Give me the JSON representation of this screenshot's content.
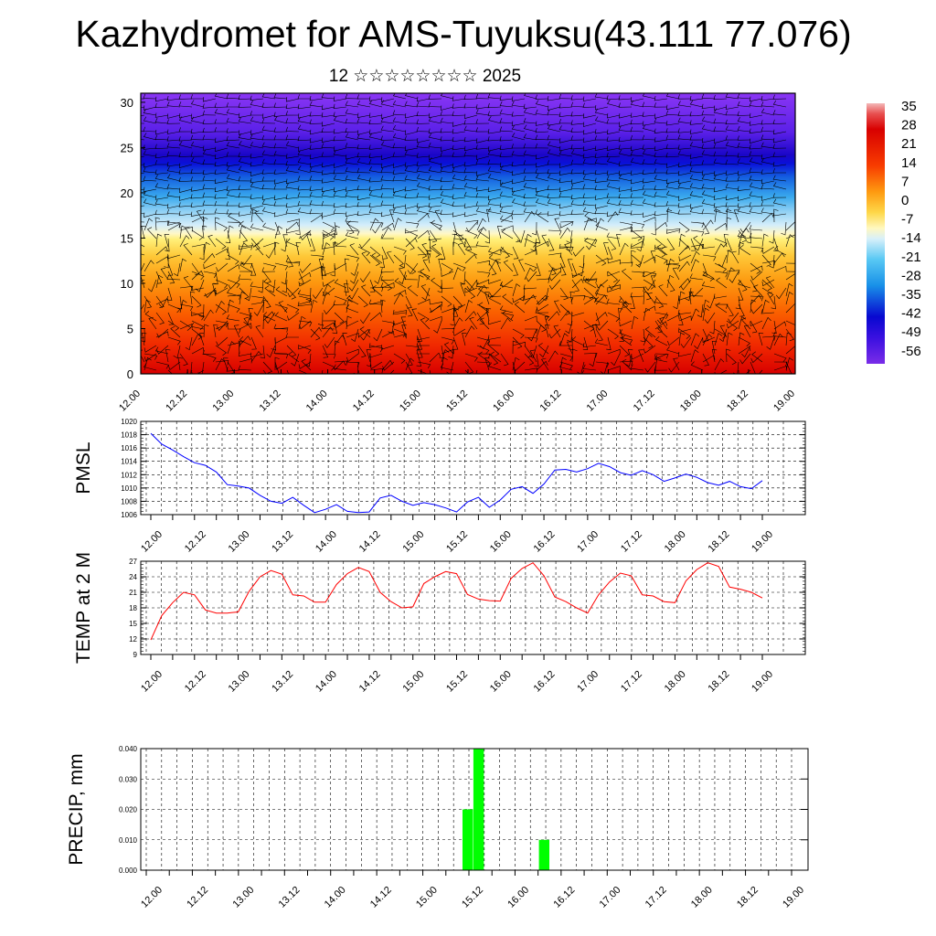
{
  "title": "Kazhydromet for AMS-Tuyuksu(43.111 77.076)",
  "subtitle": "12 ☆☆☆☆☆☆☆☆ 2025",
  "chart_data": [
    {
      "type": "heatmap",
      "name": "temperature-wind-cross-section",
      "x_tick_labels": [
        "12.00",
        "12.12",
        "13.00",
        "13.12",
        "14.00",
        "14.12",
        "15.00",
        "15.12",
        "16.00",
        "16.12",
        "17.00",
        "17.12",
        "18.00",
        "18.12",
        "19.00"
      ],
      "y_ticks": [
        0,
        5,
        10,
        15,
        20,
        25,
        30
      ],
      "ylim": [
        0,
        31
      ],
      "colorbar_labels": [
        "35",
        "28",
        "21",
        "14",
        "7",
        "0",
        "-7",
        "-14",
        "-21",
        "-28",
        "-35",
        "-42",
        "-49",
        "-56"
      ]
    },
    {
      "type": "line",
      "ylabel": "PMSL",
      "color": "#0000ff",
      "ylim": [
        1006,
        1020
      ],
      "y_ticks": [
        "1006",
        "1008",
        "1010",
        "1012",
        "1014",
        "1016",
        "1018",
        "1020"
      ],
      "x_tick_labels": [
        "12.00",
        "12.12",
        "13.00",
        "13.12",
        "14.00",
        "14.12",
        "15.00",
        "15.12",
        "16.00",
        "16.12",
        "17.00",
        "17.12",
        "18.00",
        "18.12",
        "19.00"
      ],
      "values": [
        1018.2,
        1016.6,
        1015.7,
        1014.7,
        1013.8,
        1013.4,
        1012.4,
        1010.5,
        1010.3,
        1010.0,
        1008.9,
        1008.0,
        1007.7,
        1008.6,
        1007.4,
        1006.3,
        1006.8,
        1007.5,
        1006.5,
        1006.3,
        1006.4,
        1008.5,
        1008.9,
        1008.0,
        1007.4,
        1007.8,
        1007.5,
        1007.0,
        1006.4,
        1007.9,
        1008.6,
        1007.1,
        1008.2,
        1009.8,
        1010.2,
        1009.2,
        1010.6,
        1012.7,
        1012.8,
        1012.4,
        1012.9,
        1013.7,
        1013.2,
        1012.3,
        1011.9,
        1012.6,
        1012.0,
        1011.0,
        1011.5,
        1012.1,
        1011.6,
        1010.8,
        1010.4,
        1011.0,
        1010.2,
        1009.9,
        1011.1
      ]
    },
    {
      "type": "line",
      "ylabel": "TEMP at 2 M",
      "color": "#ff0000",
      "ylim": [
        9,
        27
      ],
      "y_ticks": [
        "9",
        "12",
        "15",
        "18",
        "21",
        "24",
        "27"
      ],
      "x_tick_labels": [
        "12.00",
        "12.12",
        "13.00",
        "13.12",
        "14.00",
        "14.12",
        "15.00",
        "15.12",
        "16.00",
        "16.12",
        "17.00",
        "17.12",
        "18.00",
        "18.12",
        "19.00"
      ],
      "values": [
        11.8,
        16.5,
        19.0,
        21.0,
        20.5,
        17.6,
        17.0,
        17.0,
        17.2,
        21.2,
        24.0,
        25.2,
        24.5,
        20.5,
        20.3,
        19.1,
        19.1,
        22.5,
        24.6,
        25.8,
        25.0,
        21.0,
        19.2,
        18.0,
        18.2,
        22.7,
        24.0,
        25.0,
        24.6,
        20.6,
        19.7,
        19.4,
        19.3,
        23.7,
        25.6,
        26.7,
        24.2,
        20.1,
        19.2,
        18.0,
        17.0,
        20.5,
        23.0,
        24.7,
        24.2,
        20.5,
        20.3,
        19.2,
        19.0,
        23.2,
        25.4,
        26.7,
        26.0,
        22.0,
        21.6,
        21.0,
        19.9
      ]
    },
    {
      "type": "bar",
      "ylabel": "PRECIP, mm",
      "color": "#00ff00",
      "ylim": [
        0,
        0.04
      ],
      "y_ticks": [
        "0.000",
        "0.010",
        "0.020",
        "0.030",
        "0.040"
      ],
      "x_tick_labels": [
        "12.00",
        "12.12",
        "13.00",
        "13.12",
        "14.00",
        "14.12",
        "15.00",
        "15.12",
        "16.00",
        "16.12",
        "17.00",
        "17.12",
        "18.00",
        "18.12",
        "19.00"
      ],
      "bars": [
        {
          "time_index": 29,
          "value": 0.02
        },
        {
          "time_index": 30,
          "value": 0.04
        },
        {
          "time_index": 36,
          "value": 0.01
        }
      ]
    }
  ]
}
